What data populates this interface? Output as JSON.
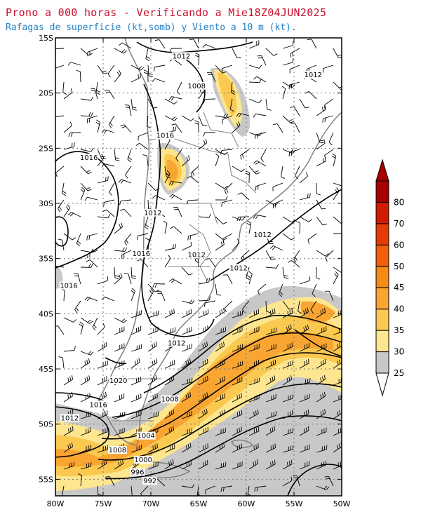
{
  "header": {
    "title": "Prono a 000 horas - Verificando a Mie18Z04JUN2025",
    "subtitle": "Rafagas de superficie (kt,somb) y Viento a 10 m (kt)."
  },
  "map": {
    "lon_range": [
      -80,
      -50
    ],
    "lat_range": [
      -56.5,
      -15
    ],
    "grid": true,
    "lon_ticks": [
      {
        "value": -80,
        "label": "80W"
      },
      {
        "value": -75,
        "label": "75W"
      },
      {
        "value": -70,
        "label": "70W"
      },
      {
        "value": -65,
        "label": "65W"
      },
      {
        "value": -60,
        "label": "60W"
      },
      {
        "value": -55,
        "label": "55W"
      },
      {
        "value": -50,
        "label": "50W"
      }
    ],
    "lat_ticks": [
      {
        "value": -15,
        "label": "15S"
      },
      {
        "value": -20,
        "label": "20S"
      },
      {
        "value": -25,
        "label": "25S"
      },
      {
        "value": -30,
        "label": "30S"
      },
      {
        "value": -35,
        "label": "35S"
      },
      {
        "value": -40,
        "label": "40S"
      },
      {
        "value": -45,
        "label": "45S"
      },
      {
        "value": -50,
        "label": "50S"
      },
      {
        "value": -55,
        "label": "55S"
      }
    ],
    "isobar_labels": [
      {
        "text": "1012",
        "lon": -66.8,
        "lat": -16.8
      },
      {
        "text": "1008",
        "lon": -65.2,
        "lat": -19.5
      },
      {
        "text": "1012",
        "lon": -53.0,
        "lat": -18.5
      },
      {
        "text": "1016",
        "lon": -68.5,
        "lat": -24.0
      },
      {
        "text": "1016",
        "lon": -76.5,
        "lat": -26.0
      },
      {
        "text": "1012",
        "lon": -69.8,
        "lat": -31.0
      },
      {
        "text": "1016",
        "lon": -71.0,
        "lat": -34.7
      },
      {
        "text": "1012",
        "lon": -65.2,
        "lat": -34.8
      },
      {
        "text": "1012",
        "lon": -58.3,
        "lat": -33.0
      },
      {
        "text": "1012",
        "lon": -60.8,
        "lat": -36.0
      },
      {
        "text": "1016",
        "lon": -78.6,
        "lat": -37.6
      },
      {
        "text": "1012",
        "lon": -67.3,
        "lat": -42.8
      },
      {
        "text": "1020",
        "lon": -73.4,
        "lat": -46.2
      },
      {
        "text": "1008",
        "lon": -68.0,
        "lat": -47.9
      },
      {
        "text": "1016",
        "lon": -75.5,
        "lat": -48.4
      },
      {
        "text": "1012",
        "lon": -78.5,
        "lat": -49.6
      },
      {
        "text": "1004",
        "lon": -70.5,
        "lat": -51.2
      },
      {
        "text": "1008",
        "lon": -73.5,
        "lat": -52.5
      },
      {
        "text": "1000",
        "lon": -70.8,
        "lat": -53.4
      },
      {
        "text": "996",
        "lon": -71.4,
        "lat": -54.5
      },
      {
        "text": "992",
        "lon": -70.1,
        "lat": -55.3
      }
    ]
  },
  "colorbar": {
    "levels": [
      25,
      30,
      35,
      40,
      45,
      50,
      60,
      70,
      80
    ],
    "colors": [
      "#c8c8c8",
      "#fde68f",
      "#fbc850",
      "#f9a532",
      "#f58a17",
      "#f25f0c",
      "#e63a06",
      "#d01c04",
      "#a70000"
    ],
    "below_color": "#ffffff",
    "above_color": "#a70000"
  }
}
